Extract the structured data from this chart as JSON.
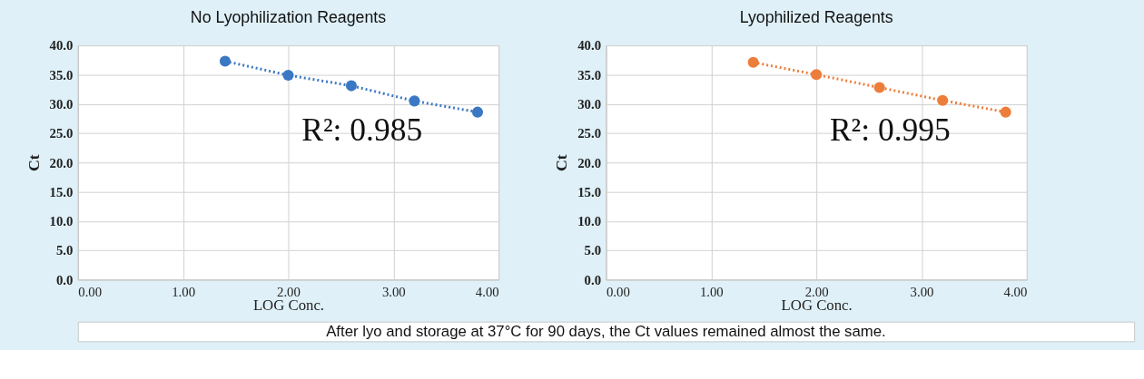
{
  "chart_data": [
    {
      "type": "line",
      "title": "No Lyophilization Reagents",
      "xlabel": "LOG Conc.",
      "ylabel": "Ct",
      "x": [
        1.4,
        2.0,
        2.6,
        3.2,
        3.8
      ],
      "series": [
        {
          "color": "#3b78c3",
          "values": [
            37.3,
            34.9,
            33.1,
            30.5,
            28.6
          ]
        }
      ],
      "xlim": [
        0,
        4
      ],
      "xticks": [
        {
          "value": 0,
          "label": "0.00"
        },
        {
          "value": 1,
          "label": "1.00"
        },
        {
          "value": 2,
          "label": "2.00"
        },
        {
          "value": 3,
          "label": "3.00"
        },
        {
          "value": 4,
          "label": "4.00"
        }
      ],
      "ylim": [
        0,
        40
      ],
      "yticks": [
        {
          "value": 0,
          "label": "0.0"
        },
        {
          "value": 5,
          "label": "5.0"
        },
        {
          "value": 10,
          "label": "10.0"
        },
        {
          "value": 15,
          "label": "15.0"
        },
        {
          "value": 20,
          "label": "20.0"
        },
        {
          "value": 25,
          "label": "25.0"
        },
        {
          "value": 30,
          "label": "30.0"
        },
        {
          "value": 35,
          "label": "35.0"
        },
        {
          "value": 40,
          "label": "40.0"
        }
      ],
      "grid": true,
      "marker": "circle",
      "line_style": "dotted",
      "annotations": [
        "R²: 0.985"
      ]
    },
    {
      "type": "line",
      "title": "Lyophilized Reagents",
      "xlabel": "LOG Conc.",
      "ylabel": "Ct",
      "x": [
        1.4,
        2.0,
        2.6,
        3.2,
        3.8
      ],
      "series": [
        {
          "color": "#ed7d3a",
          "values": [
            37.1,
            35.0,
            32.8,
            30.6,
            28.6
          ]
        }
      ],
      "xlim": [
        0,
        4
      ],
      "xticks": [
        {
          "value": 0,
          "label": "0.00"
        },
        {
          "value": 1,
          "label": "1.00"
        },
        {
          "value": 2,
          "label": "2.00"
        },
        {
          "value": 3,
          "label": "3.00"
        },
        {
          "value": 4,
          "label": "4.00"
        }
      ],
      "ylim": [
        0,
        40
      ],
      "yticks": [
        {
          "value": 0,
          "label": "0.0"
        },
        {
          "value": 5,
          "label": "5.0"
        },
        {
          "value": 10,
          "label": "10.0"
        },
        {
          "value": 15,
          "label": "15.0"
        },
        {
          "value": 20,
          "label": "20.0"
        },
        {
          "value": 25,
          "label": "25.0"
        },
        {
          "value": 30,
          "label": "30.0"
        },
        {
          "value": 35,
          "label": "35.0"
        },
        {
          "value": 40,
          "label": "40.0"
        }
      ],
      "grid": true,
      "marker": "circle",
      "line_style": "dotted",
      "annotations": [
        "R²: 0.995"
      ]
    },
    {
      "type": "other",
      "annotations": [
        "After lyo and storage at 37°C for 90 days, the Ct values remained almost the same."
      ]
    }
  ]
}
